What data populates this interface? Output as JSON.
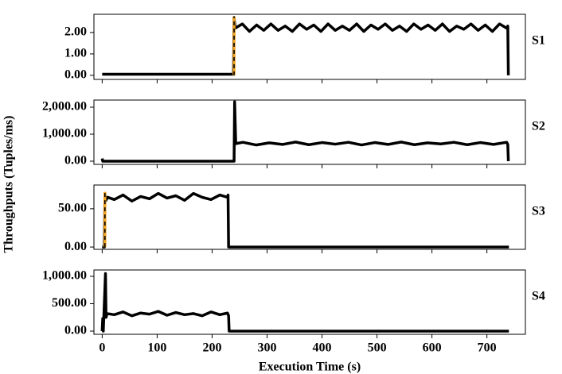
{
  "figure": {
    "ylabel": "Throughputs (Tuples/ms)",
    "xlabel": "Execution Time (s)"
  },
  "chart_data": [
    {
      "type": "line",
      "title": "S1",
      "xlim": [
        -15,
        770
      ],
      "ylim": [
        -0.19,
        2.85
      ],
      "xticks": [
        0,
        100,
        200,
        300,
        400,
        500,
        600,
        700
      ],
      "show_xtick_labels": false,
      "yticks": [
        {
          "value": 0,
          "label": "0.00"
        },
        {
          "value": 1,
          "label": "1.00"
        },
        {
          "value": 2,
          "label": "2.00"
        }
      ],
      "series": [
        {
          "color": "#000000",
          "x": [
            0,
            239,
            240,
            242,
            255,
            268,
            281,
            294,
            307,
            320,
            333,
            346,
            359,
            372,
            385,
            398,
            411,
            424,
            437,
            450,
            463,
            476,
            489,
            502,
            515,
            528,
            541,
            554,
            567,
            580,
            593,
            606,
            619,
            632,
            645,
            658,
            671,
            684,
            697,
            710,
            723,
            736,
            738,
            739
          ],
          "values": [
            0.05,
            0.05,
            2.7,
            2.2,
            2.4,
            2.05,
            2.35,
            2.1,
            2.4,
            2.1,
            2.3,
            2.05,
            2.4,
            2.15,
            2.35,
            2.05,
            2.4,
            2.1,
            2.3,
            2.1,
            2.4,
            2.05,
            2.35,
            2.15,
            2.4,
            2.1,
            2.3,
            2.05,
            2.4,
            2.15,
            2.35,
            2.1,
            2.4,
            2.05,
            2.3,
            2.15,
            2.4,
            2.1,
            2.35,
            2.05,
            2.4,
            2.2,
            2.3,
            0
          ]
        },
        {
          "color": "#f5a623",
          "dashed": true,
          "x": [
            240,
            240
          ],
          "values": [
            0,
            2.75
          ]
        }
      ]
    },
    {
      "type": "line",
      "title": "S2",
      "xlim": [
        -15,
        770
      ],
      "ylim": [
        -118,
        2265
      ],
      "xticks": [
        0,
        100,
        200,
        300,
        400,
        500,
        600,
        700
      ],
      "show_xtick_labels": false,
      "yticks": [
        {
          "value": 0,
          "label": "0.00"
        },
        {
          "value": 1000,
          "label": "1,000.00"
        },
        {
          "value": 2000,
          "label": "2,000.00"
        }
      ],
      "series": [
        {
          "color": "#000000",
          "x": [
            0,
            1,
            3,
            240,
            241,
            243,
            256,
            280,
            304,
            328,
            352,
            376,
            400,
            424,
            448,
            472,
            496,
            520,
            544,
            568,
            592,
            616,
            640,
            664,
            688,
            712,
            736,
            738,
            739
          ],
          "values": [
            100,
            0,
            0,
            0,
            2200,
            650,
            700,
            600,
            680,
            620,
            710,
            610,
            690,
            630,
            700,
            600,
            690,
            620,
            710,
            610,
            680,
            640,
            700,
            610,
            690,
            620,
            700,
            620,
            0
          ]
        }
      ]
    },
    {
      "type": "line",
      "title": "S3",
      "xlim": [
        -15,
        770
      ],
      "ylim": [
        -3,
        81
      ],
      "xticks": [
        0,
        100,
        200,
        300,
        400,
        500,
        600,
        700
      ],
      "show_xtick_labels": false,
      "yticks": [
        {
          "value": 0,
          "label": "0.00"
        },
        {
          "value": 50,
          "label": "50.00"
        }
      ],
      "series": [
        {
          "color": "#000000",
          "x": [
            0,
            4,
            5,
            6,
            10,
            22,
            38,
            54,
            70,
            86,
            102,
            118,
            134,
            150,
            166,
            182,
            198,
            214,
            228,
            229,
            230,
            740
          ],
          "values": [
            0,
            0,
            70,
            60,
            65,
            62,
            68,
            60,
            66,
            63,
            70,
            64,
            67,
            61,
            70,
            65,
            62,
            68,
            65,
            68,
            0,
            0
          ]
        },
        {
          "color": "#f5a623",
          "dashed": true,
          "x": [
            5,
            5
          ],
          "values": [
            0,
            72
          ]
        }
      ]
    },
    {
      "type": "line",
      "title": "S4",
      "xlim": [
        -15,
        770
      ],
      "ylim": [
        -58,
        1116
      ],
      "xticks": [
        0,
        100,
        200,
        300,
        400,
        500,
        600,
        700
      ],
      "show_xtick_labels": true,
      "yticks": [
        {
          "value": 0,
          "label": "0.00"
        },
        {
          "value": 500,
          "label": "500.00"
        },
        {
          "value": 1000,
          "label": "1,000.00"
        }
      ],
      "series": [
        {
          "color": "#000000",
          "x": [
            0,
            1,
            2,
            6,
            7,
            9,
            22,
            38,
            54,
            70,
            86,
            102,
            118,
            134,
            150,
            166,
            182,
            198,
            214,
            228,
            230,
            231,
            740
          ],
          "values": [
            0,
            230,
            0,
            1050,
            250,
            320,
            300,
            350,
            280,
            330,
            310,
            360,
            290,
            340,
            300,
            320,
            280,
            350,
            300,
            330,
            280,
            0,
            0
          ]
        }
      ]
    }
  ]
}
